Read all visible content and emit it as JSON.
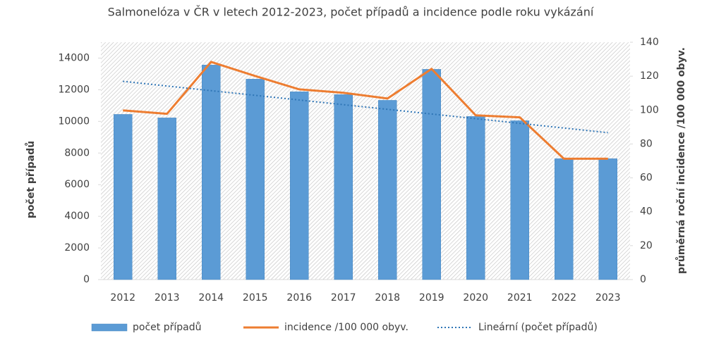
{
  "chart_data": {
    "type": "bar",
    "title": "Salmonelóza v ČR v letech 2012-2023, počet případů a incidence podle roku vykázání",
    "ylabel": "počet případů",
    "y2label": "průměrná roční incidence /100 000 obyv.",
    "categories": [
      "2012",
      "2013",
      "2014",
      "2015",
      "2016",
      "2017",
      "2018",
      "2019",
      "2020",
      "2021",
      "2022",
      "2023"
    ],
    "series": [
      {
        "name": "počet případů",
        "type": "bar",
        "color": "#5b9bd5",
        "values": [
          10440,
          10220,
          13560,
          12670,
          11870,
          11690,
          11330,
          13290,
          10310,
          10040,
          7640,
          7640
        ]
      },
      {
        "name": "incidence /100 000 obyv.",
        "type": "line",
        "axis": "y2",
        "color": "#ed7d31",
        "values": [
          99.8,
          97.8,
          128.4,
          120.1,
          112.2,
          110.2,
          106.8,
          124.3,
          96.9,
          95.7,
          71.3,
          71.3
        ]
      },
      {
        "name": "Lineární (počet případů)",
        "type": "line",
        "dotted": true,
        "color": "#2e75b6",
        "values": [
          12530,
          12235,
          11940,
          11645,
          11350,
          11055,
          10760,
          10465,
          10170,
          9875,
          9580,
          9285
        ]
      }
    ],
    "ylim": [
      0,
      15000
    ],
    "yticks": [
      0,
      2000,
      4000,
      6000,
      8000,
      10000,
      12000,
      14000
    ],
    "y2lim": [
      0,
      140
    ],
    "y2ticks": [
      0,
      20,
      40,
      60,
      80,
      100,
      120,
      140
    ],
    "legend": "bottom"
  }
}
